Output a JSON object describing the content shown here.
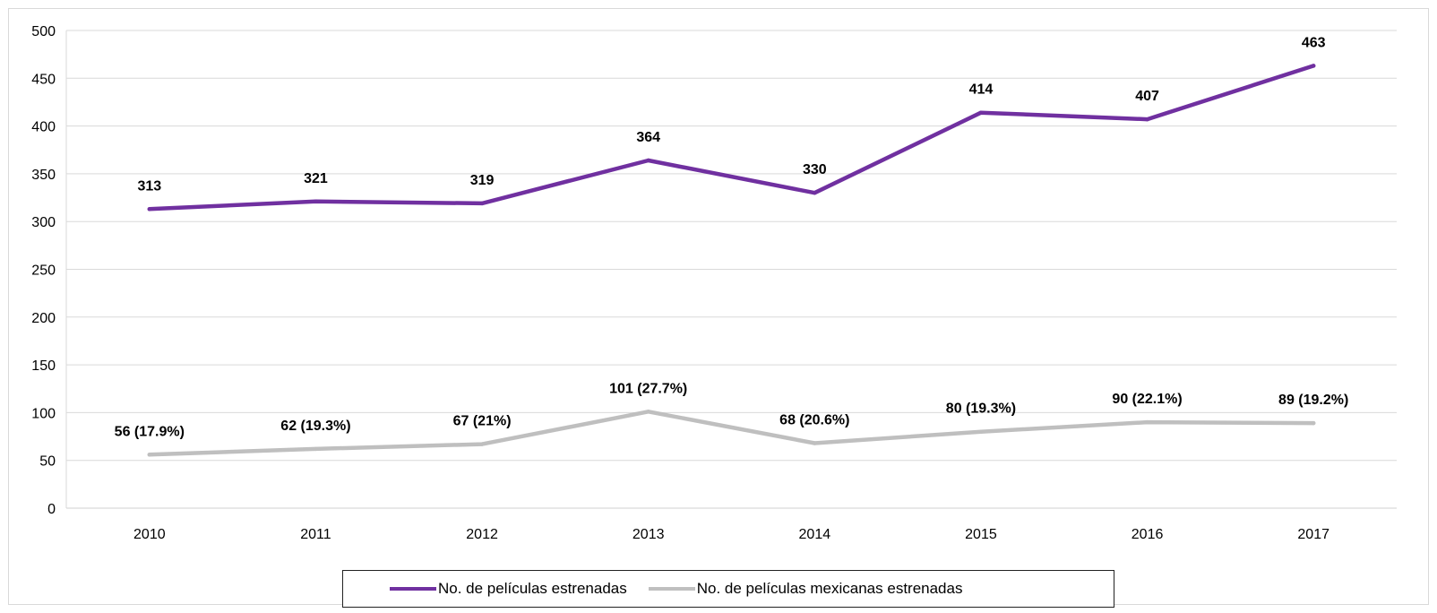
{
  "chart_data": {
    "type": "line",
    "title": "",
    "xlabel": "",
    "ylabel": "",
    "categories": [
      "2010",
      "2011",
      "2012",
      "2013",
      "2014",
      "2015",
      "2016",
      "2017"
    ],
    "ylim": [
      0,
      500
    ],
    "yticks": [
      0,
      50,
      100,
      150,
      200,
      250,
      300,
      350,
      400,
      450,
      500
    ],
    "grid": true,
    "legend_position": "bottom",
    "series": [
      {
        "name": "No. de películas estrenadas",
        "color": "#7030a0",
        "values": [
          313,
          321,
          319,
          364,
          330,
          414,
          407,
          463
        ],
        "labels": [
          "313",
          "321",
          "319",
          "364",
          "330",
          "414",
          "407",
          "463"
        ]
      },
      {
        "name": "No. de películas mexicanas  estrenadas",
        "color": "#bfbfbf",
        "values": [
          56,
          62,
          67,
          101,
          68,
          80,
          90,
          89
        ],
        "labels": [
          "56 (17.9%)",
          "62 (19.3%)",
          "67 (21%)",
          "101 (27.7%)",
          "68 (20.6%)",
          "80 (19.3%)",
          "90 (22.1%)",
          "89 (19.2%)"
        ]
      }
    ]
  }
}
